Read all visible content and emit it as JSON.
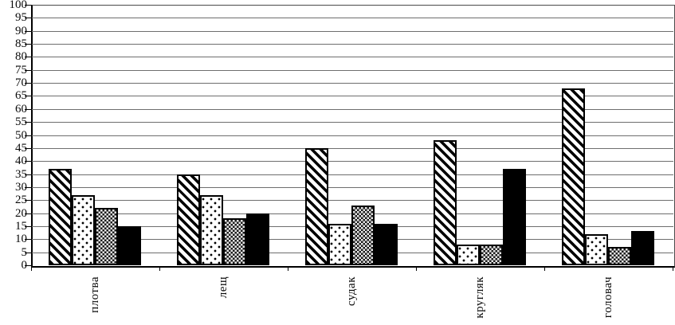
{
  "chart_data": {
    "type": "bar",
    "title": "",
    "xlabel": "",
    "ylabel": "",
    "categories": [
      "плотва",
      "лещ",
      "судак",
      "кругляк",
      "головач"
    ],
    "series": [
      {
        "name": "series-1-diagonal-hatch",
        "pattern": "diagonal-hatch",
        "values": [
          37,
          35,
          45,
          48,
          68
        ]
      },
      {
        "name": "series-2-dotted",
        "pattern": "dotted",
        "values": [
          27,
          27,
          16,
          8,
          12
        ]
      },
      {
        "name": "series-3-checkered",
        "pattern": "checkered",
        "values": [
          22,
          18,
          23,
          8,
          7
        ]
      },
      {
        "name": "series-4-solid-black",
        "pattern": "solid-black",
        "values": [
          15,
          20,
          16,
          37,
          13
        ]
      }
    ],
    "ylim": [
      0,
      100
    ],
    "y_ticks": [
      0,
      5,
      10,
      15,
      20,
      25,
      30,
      35,
      40,
      45,
      50,
      55,
      60,
      65,
      70,
      75,
      80,
      85,
      90,
      95,
      100
    ],
    "grid": true,
    "legend": false,
    "colors": {
      "bar_outline": "#000000",
      "gridline": "#6e6e6e",
      "axis": "#000000",
      "background": "#ffffff",
      "text": "#0a0a0a"
    }
  }
}
